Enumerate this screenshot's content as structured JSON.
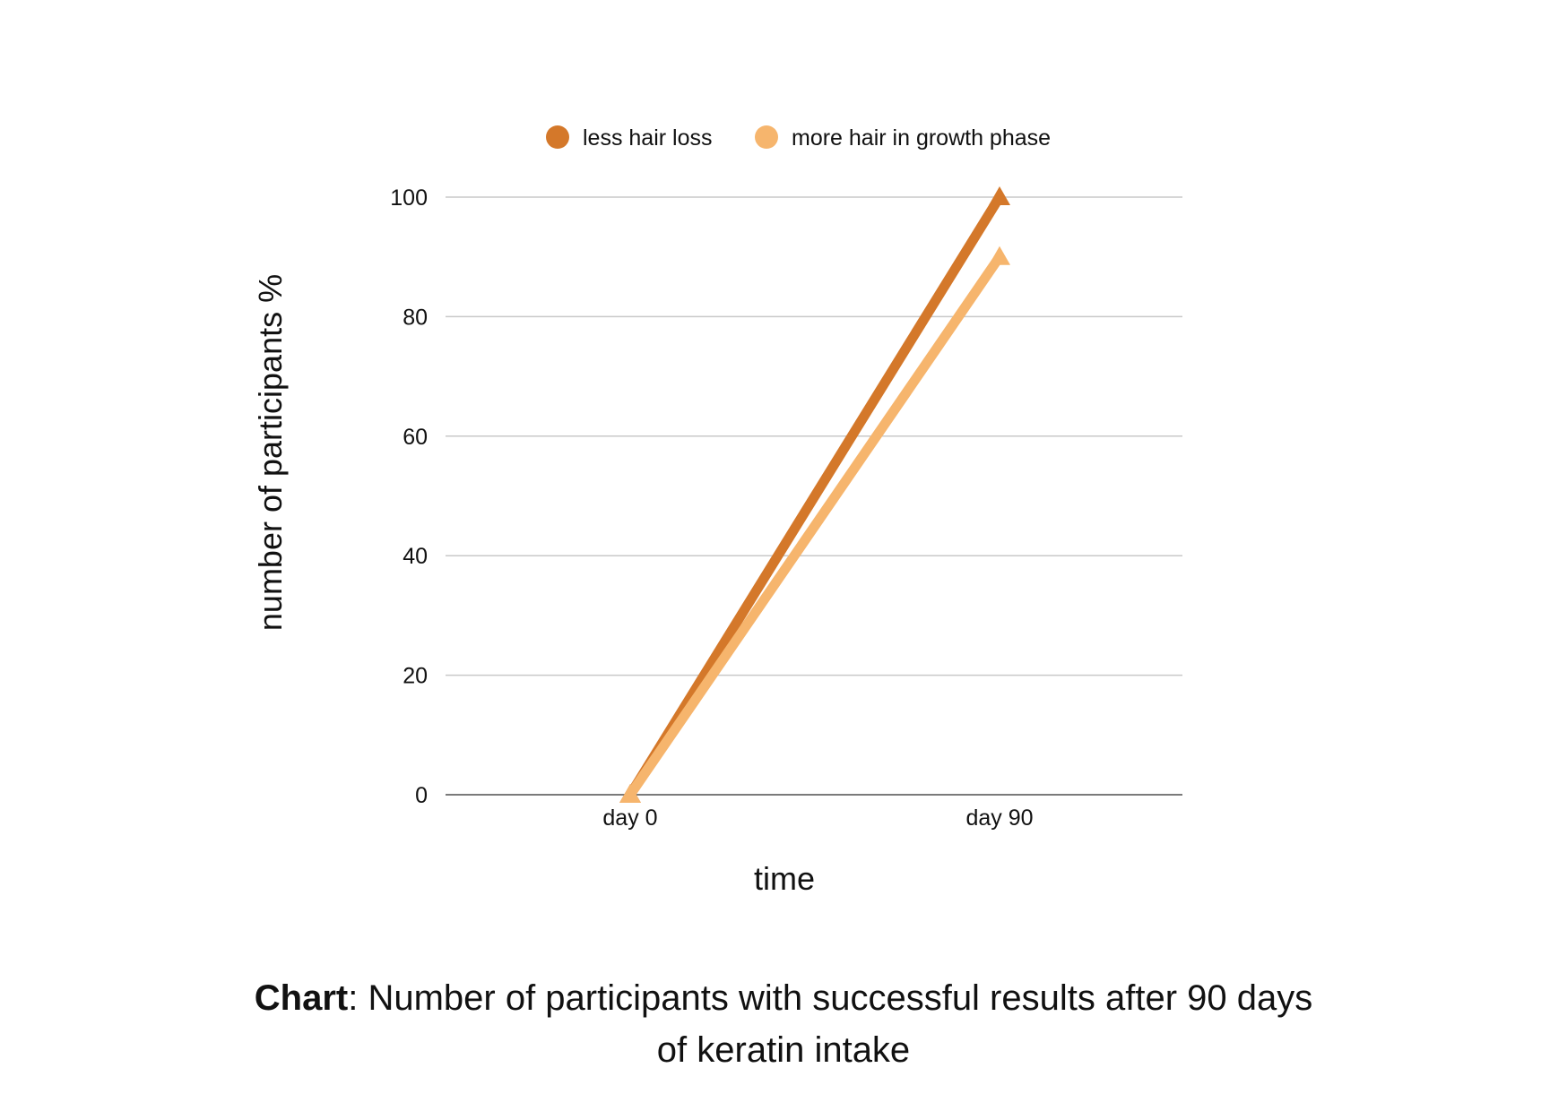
{
  "chart_data": {
    "type": "line",
    "categories": [
      "day 0",
      "day 90"
    ],
    "series": [
      {
        "name": "less hair loss",
        "values": [
          0,
          100
        ],
        "color": "#d4782a"
      },
      {
        "name": "more hair in growth phase",
        "values": [
          0,
          90
        ],
        "color": "#f6b56d"
      }
    ],
    "xlabel": "time",
    "ylabel": "number of participants %",
    "ylim": [
      0,
      100
    ],
    "yticks": [
      0,
      20,
      40,
      60,
      80,
      100
    ],
    "grid": true,
    "legend": "top",
    "marker": "triangle",
    "gridline_color": "#c8c8c8",
    "axis_color": "#7a7a7a"
  },
  "caption": {
    "prefix": "Chart",
    "line1": ": Number of participants with successful results after 90 days",
    "line2": "of keratin intake"
  }
}
